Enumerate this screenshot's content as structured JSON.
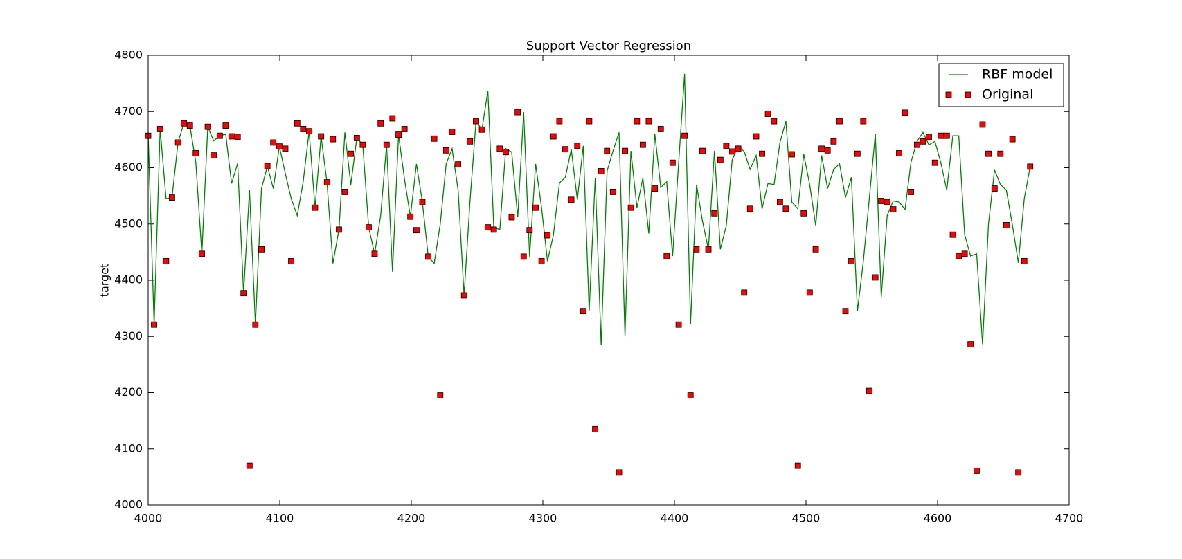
{
  "chart_data": {
    "type": "line",
    "title": "Support Vector Regression",
    "ylabel": "target",
    "xlim": [
      4000,
      4700
    ],
    "ylim": [
      4000,
      4800
    ],
    "xticks": [
      4000,
      4100,
      4200,
      4300,
      4400,
      4500,
      4600,
      4700
    ],
    "yticks": [
      4000,
      4100,
      4200,
      4300,
      4400,
      4500,
      4600,
      4700,
      4800
    ],
    "legend": "upper right",
    "x": [
      4000.0,
      4004.5,
      4009.1,
      4013.6,
      4018.1,
      4022.7,
      4027.2,
      4031.7,
      4036.2,
      4040.8,
      4045.3,
      4049.8,
      4054.4,
      4058.9,
      4063.4,
      4068.0,
      4072.5,
      4077.0,
      4081.5,
      4086.1,
      4090.6,
      4095.1,
      4099.7,
      4104.2,
      4108.7,
      4113.3,
      4117.8,
      4122.3,
      4126.8,
      4131.4,
      4135.9,
      4140.4,
      4145.0,
      4149.5,
      4154.0,
      4158.6,
      4163.1,
      4167.6,
      4172.1,
      4176.7,
      4181.2,
      4185.7,
      4190.3,
      4194.8,
      4199.3,
      4203.9,
      4208.4,
      4212.9,
      4217.4,
      4222.0,
      4226.5,
      4231.0,
      4235.6,
      4240.1,
      4244.6,
      4249.2,
      4253.7,
      4258.2,
      4262.7,
      4267.3,
      4271.8,
      4276.3,
      4280.9,
      4285.4,
      4289.9,
      4294.5,
      4299.0,
      4303.5,
      4308.0,
      4312.6,
      4317.1,
      4321.6,
      4326.2,
      4330.7,
      4335.2,
      4339.8,
      4344.3,
      4348.8,
      4353.3,
      4357.9,
      4362.4,
      4366.9,
      4371.5,
      4376.0,
      4380.5,
      4385.1,
      4389.6,
      4394.1,
      4398.6,
      4403.2,
      4407.7,
      4412.2,
      4416.8,
      4421.3,
      4425.8,
      4430.4,
      4434.9,
      4439.4,
      4443.9,
      4448.5,
      4453.0,
      4457.5,
      4462.1,
      4466.6,
      4471.1,
      4475.7,
      4480.2,
      4484.7,
      4489.2,
      4493.8,
      4498.3,
      4502.8,
      4507.4,
      4511.9,
      4516.4,
      4521.0,
      4525.5,
      4530.0,
      4534.5,
      4539.1,
      4543.6,
      4548.1,
      4552.7,
      4557.2,
      4561.7,
      4566.3,
      4570.8,
      4575.3,
      4579.8,
      4584.4,
      4588.9,
      4593.4,
      4598.0,
      4602.5,
      4607.0,
      4611.6,
      4616.1,
      4620.6,
      4625.1,
      4629.7,
      4634.2,
      4638.7,
      4643.3,
      4647.8,
      4652.3,
      4656.9,
      4661.4,
      4665.9,
      4670.4
    ],
    "series": [
      {
        "name": "RBF model",
        "color": "#008000",
        "style": "line",
        "values": [
          4660,
          4321,
          4669,
          4545,
          4547,
          4645,
          4680,
          4675,
          4610,
          4447,
          4673,
          4648,
          4657,
          4660,
          4572,
          4608,
          4377,
          4560,
          4321,
          4563,
          4603,
          4563,
          4638,
          4590,
          4545,
          4515,
          4575,
          4665,
          4529,
          4656,
          4574,
          4430,
          4490,
          4663,
          4570,
          4653,
          4641,
          4494,
          4447,
          4515,
          4641,
          4415,
          4659,
          4580,
          4513,
          4607,
          4539,
          4442,
          4430,
          4500,
          4607,
          4634,
          4560,
          4373,
          4540,
          4683,
          4668,
          4737,
          4494,
          4490,
          4634,
          4628,
          4512,
          4699,
          4442,
          4607,
          4529,
          4434,
          4480,
          4573,
          4583,
          4633,
          4543,
          4639,
          4345,
          4582,
          4285,
          4594,
          4630,
          4663,
          4300,
          4630,
          4529,
          4582,
          4483,
          4660,
          4565,
          4575,
          4443,
          4609,
          4767,
          4321,
          4570,
          4505,
          4455,
          4630,
          4455,
          4497,
          4614,
          4639,
          4629,
          4597,
          4622,
          4527,
          4572,
          4570,
          4645,
          4683,
          4539,
          4527,
          4624,
          4570,
          4497,
          4622,
          4563,
          4597,
          4607,
          4547,
          4583,
          4345,
          4434,
          4545,
          4660,
          4370,
          4515,
          4541,
          4539,
          4526,
          4610,
          4647,
          4663,
          4641,
          4647,
          4609,
          4560,
          4657,
          4657,
          4481,
          4443,
          4447,
          4286,
          4500,
          4596,
          4570,
          4560,
          4498,
          4431,
          4545,
          4602
        ]
      },
      {
        "name": "Original",
        "color": "#ff0000",
        "style": "marker",
        "values": [
          4657,
          4321,
          4669,
          4434,
          4547,
          4645,
          4679,
          4675,
          4626,
          4447,
          4673,
          4622,
          4657,
          4675,
          4656,
          4655,
          4377,
          4070,
          4321,
          4455,
          4603,
          4645,
          4638,
          4634,
          4434,
          4679,
          4669,
          4665,
          4529,
          4656,
          4574,
          4651,
          4490,
          4557,
          4625,
          4653,
          4641,
          4494,
          4447,
          4679,
          4641,
          4688,
          4659,
          4669,
          4513,
          4489,
          4539,
          4442,
          4652,
          4195,
          4631,
          4664,
          4606,
          4373,
          4647,
          4683,
          4668,
          4494,
          4490,
          4634,
          4628,
          4512,
          4699,
          4442,
          4489,
          4529,
          4434,
          4480,
          4656,
          4683,
          4633,
          4543,
          4639,
          4345,
          4683,
          4135,
          4594,
          4630,
          4557,
          4058,
          4630,
          4529,
          4683,
          4641,
          4683,
          4563,
          4669,
          4443,
          4609,
          4321,
          4657,
          4195,
          4455,
          4630,
          4455,
          4519,
          4614,
          4639,
          4629,
          4634,
          4378,
          4527,
          4656,
          4625,
          4696,
          4683,
          4539,
          4527,
          4624,
          4070,
          4519,
          4378,
          4455,
          4634,
          4631,
          4647,
          4683,
          4345,
          4434,
          4625,
          4683,
          4203,
          4405,
          4541,
          4539,
          4526,
          4626,
          4698,
          4557,
          4641,
          4647,
          4655,
          4609,
          4657,
          4657,
          4481,
          4443,
          4447,
          4286,
          4061,
          4677,
          4625,
          4563,
          4625,
          4498,
          4651,
          4058,
          4434,
          4602
        ]
      }
    ]
  }
}
